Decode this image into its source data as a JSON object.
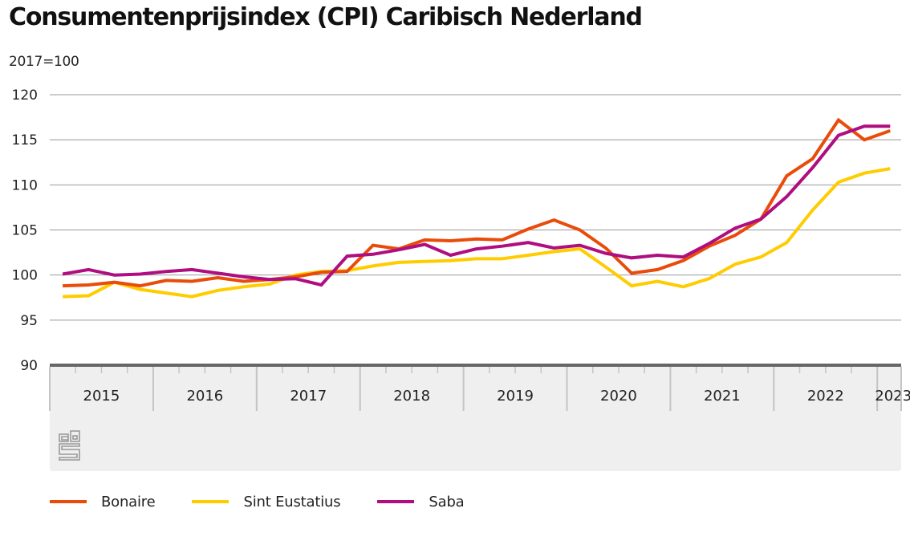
{
  "title": "Consumentenprijsindex (CPI) Caribisch Nederland",
  "unit_label": "2017=100",
  "logo": "cbs-logo-icon",
  "colors": {
    "Bonaire": "#e94c0a",
    "Sint Eustatius": "#ffcc00",
    "Saba": "#af0e80",
    "grid": "#999999",
    "axis": "#666666",
    "axis_panel": "#efefef"
  },
  "chart_data": {
    "type": "line",
    "title": "Consumentenprijsindex (CPI) Caribisch Nederland",
    "ylabel": "2017=100",
    "xlabel": "",
    "ylim": [
      90,
      120
    ],
    "yticks": [
      90,
      95,
      100,
      105,
      110,
      115,
      120
    ],
    "grid": true,
    "legend_position": "bottom",
    "x_years": [
      "2015",
      "2016",
      "2017",
      "2018",
      "2019",
      "2020",
      "2021",
      "2022",
      "2023"
    ],
    "x": [
      "2015Q1",
      "2015Q2",
      "2015Q3",
      "2015Q4",
      "2016Q1",
      "2016Q2",
      "2016Q3",
      "2016Q4",
      "2017Q1",
      "2017Q2",
      "2017Q3",
      "2017Q4",
      "2018Q1",
      "2018Q2",
      "2018Q3",
      "2018Q4",
      "2019Q1",
      "2019Q2",
      "2019Q3",
      "2019Q4",
      "2020Q1",
      "2020Q2",
      "2020Q3",
      "2020Q4",
      "2021Q1",
      "2021Q2",
      "2021Q3",
      "2021Q4",
      "2022Q1",
      "2022Q2",
      "2022Q3",
      "2022Q4",
      "2023Q1"
    ],
    "series": [
      {
        "name": "Bonaire",
        "values": [
          98.8,
          98.9,
          99.2,
          98.8,
          99.4,
          99.3,
          99.7,
          99.3,
          99.5,
          99.8,
          100.3,
          100.4,
          103.3,
          102.9,
          103.9,
          103.8,
          104.0,
          103.9,
          105.1,
          106.1,
          105.0,
          103.0,
          100.2,
          100.6,
          101.6,
          103.2,
          104.4,
          106.2,
          111.0,
          112.9,
          117.2,
          115.0,
          116.0
        ]
      },
      {
        "name": "Sint Eustatius",
        "values": [
          97.6,
          97.7,
          99.2,
          98.4,
          98.0,
          97.6,
          98.3,
          98.7,
          99.0,
          100.0,
          100.4,
          100.5,
          101.0,
          101.4,
          101.5,
          101.6,
          101.8,
          101.8,
          102.2,
          102.6,
          102.9,
          100.9,
          98.8,
          99.3,
          98.7,
          99.6,
          101.2,
          102.0,
          103.6,
          107.2,
          110.3,
          111.3,
          111.8
        ]
      },
      {
        "name": "Saba",
        "values": [
          100.1,
          100.6,
          100.0,
          100.1,
          100.4,
          100.6,
          100.2,
          99.8,
          99.5,
          99.6,
          98.9,
          102.1,
          102.3,
          102.8,
          103.4,
          102.2,
          102.9,
          103.2,
          103.6,
          103.0,
          103.3,
          102.4,
          101.9,
          102.2,
          102.0,
          103.5,
          105.2,
          106.2,
          108.7,
          111.9,
          115.5,
          116.5,
          116.5
        ]
      }
    ]
  },
  "legend": [
    {
      "label": "Bonaire"
    },
    {
      "label": "Sint Eustatius"
    },
    {
      "label": "Saba"
    }
  ]
}
